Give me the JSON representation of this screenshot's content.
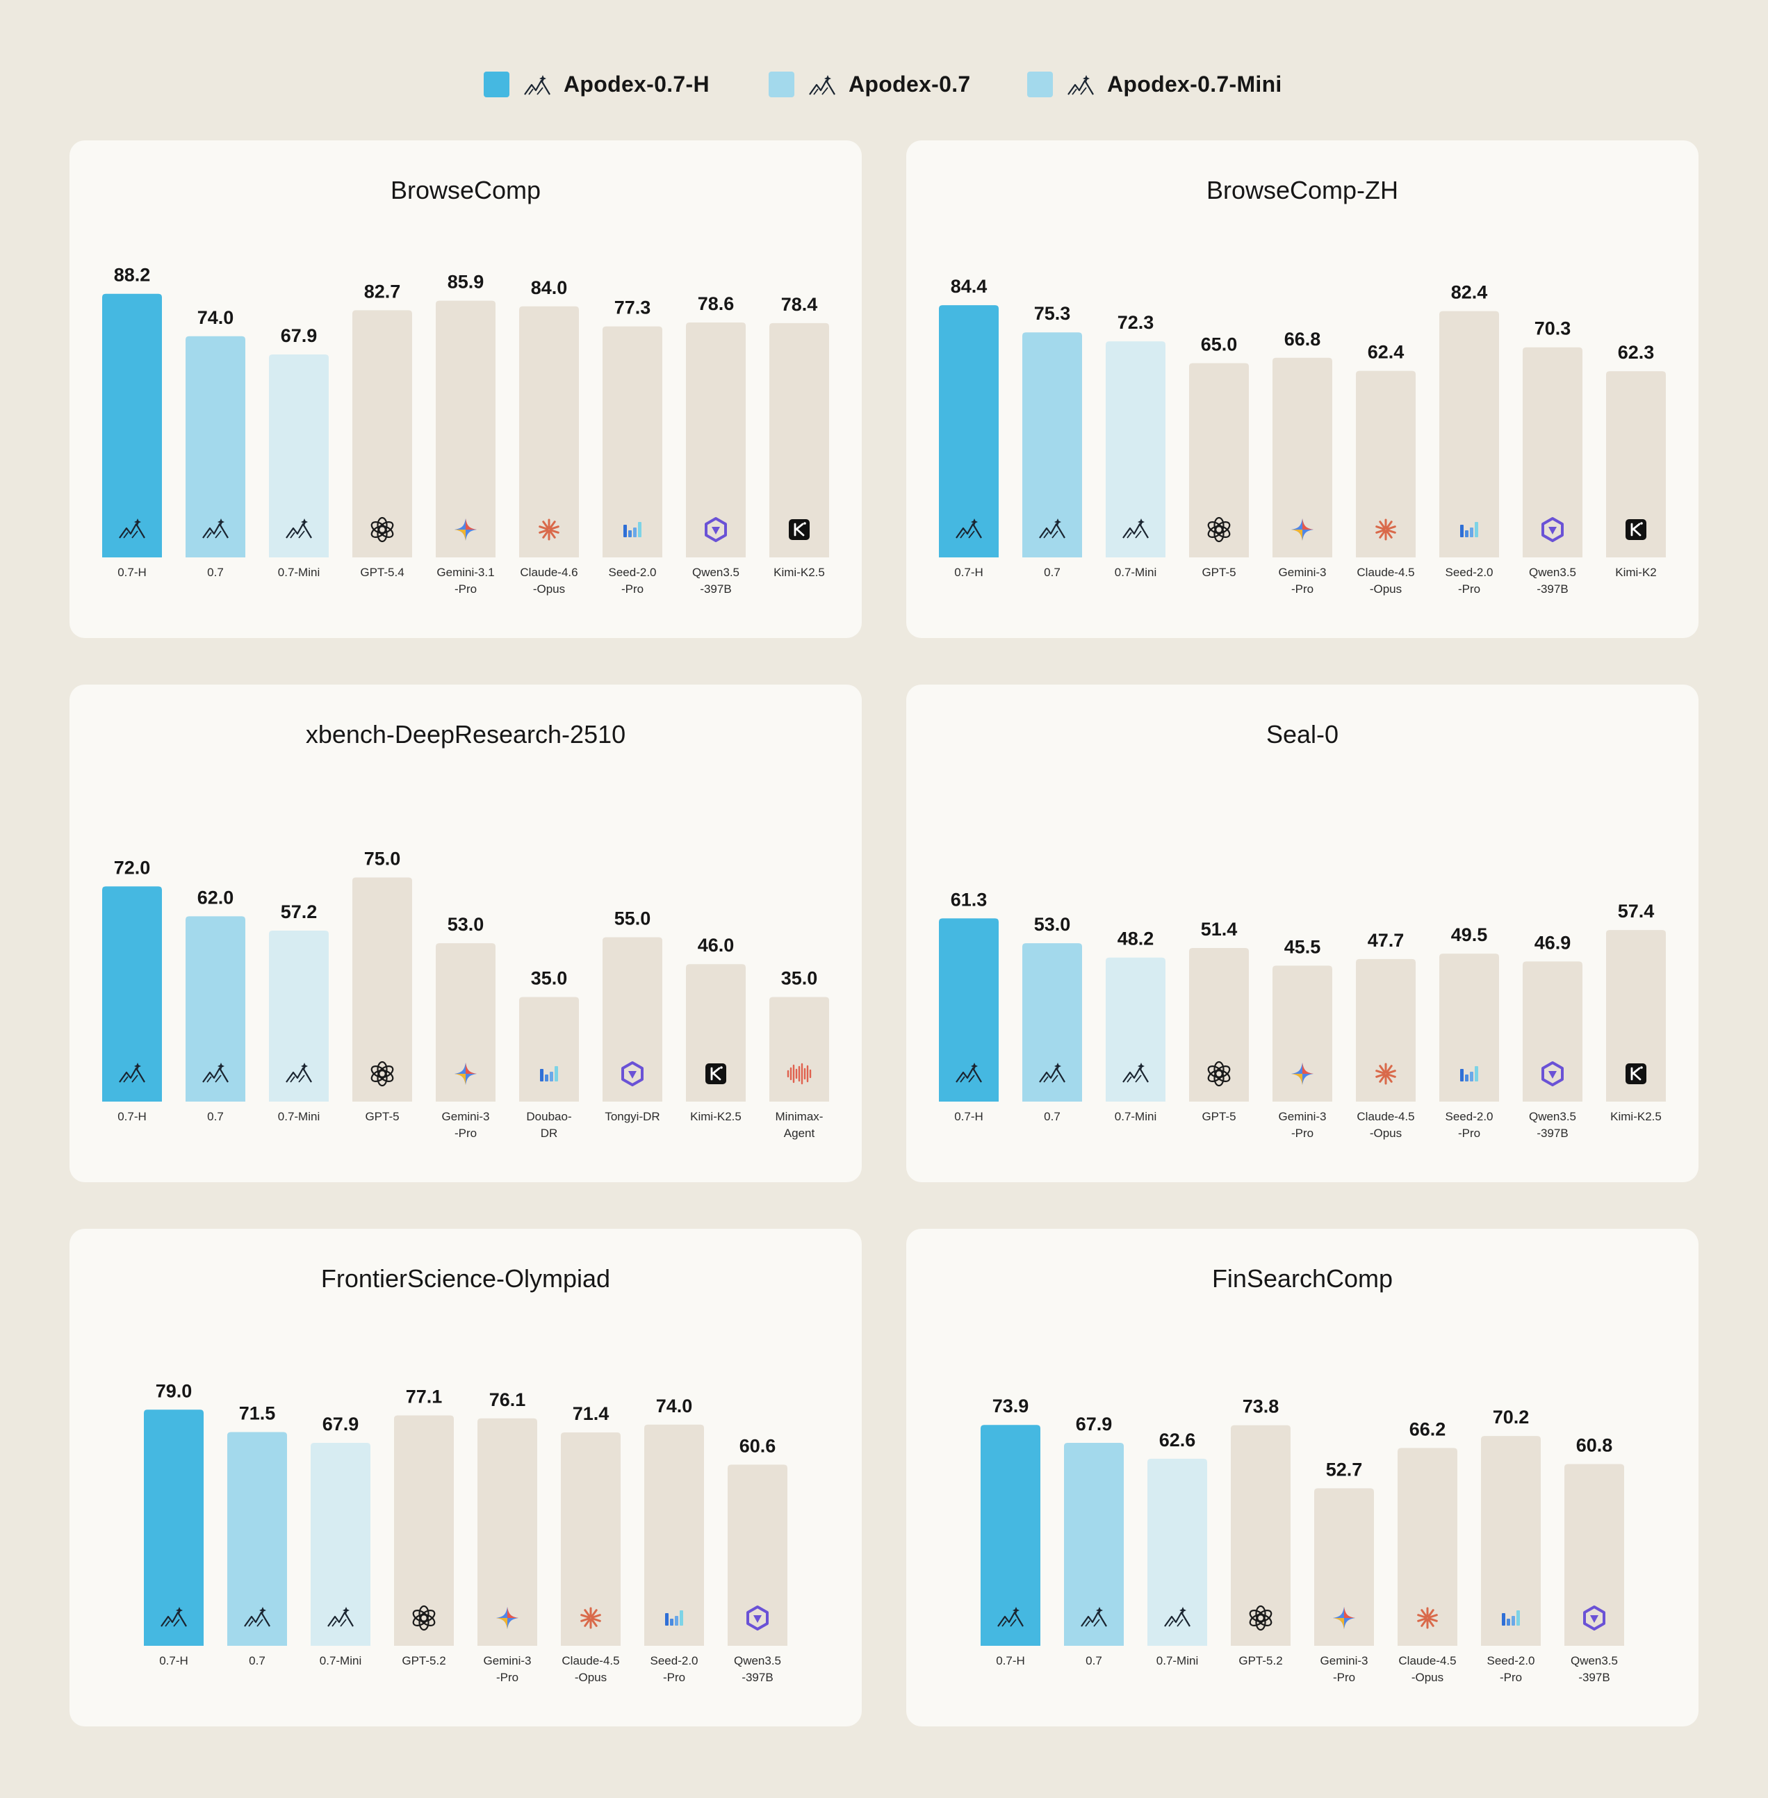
{
  "legend": [
    {
      "label": "Apodex-0.7-H",
      "color": "#45b8e1"
    },
    {
      "label": "Apodex-0.7",
      "color": "#a3d9ec"
    },
    {
      "label": "Apodex-0.7-Mini",
      "color": "#a3d9ec"
    }
  ],
  "colors": {
    "h": "#45b8e1",
    "base": "#a3d9ec",
    "mini": "#d7ecf2",
    "other": "#e8e1d6"
  },
  "chart_data": [
    {
      "type": "bar",
      "title": "BrowseComp",
      "categories": [
        [
          "0.7-H"
        ],
        [
          "0.7"
        ],
        [
          "0.7-Mini"
        ],
        [
          "GPT-5.4"
        ],
        [
          "Gemini-3.1",
          "-Pro"
        ],
        [
          "Claude-4.6",
          "-Opus"
        ],
        [
          "Seed-2.0",
          "-Pro"
        ],
        [
          "Qwen3.5",
          "-397B"
        ],
        [
          "Kimi-K2.5"
        ]
      ],
      "values": [
        88.2,
        74.0,
        67.9,
        82.7,
        85.9,
        84.0,
        77.3,
        78.6,
        78.4
      ],
      "labels": [
        "88.2",
        "74.0",
        "67.9",
        "82.7",
        "85.9",
        "84.0",
        "77.3",
        "78.6",
        "78.4"
      ],
      "icons": [
        "apodex-icon",
        "apodex-icon",
        "apodex-icon",
        "openai-icon",
        "gemini-icon",
        "claude-icon",
        "seed-icon",
        "qwen-icon",
        "kimi-icon"
      ],
      "series": [
        "h",
        "base",
        "mini",
        "other",
        "other",
        "other",
        "other",
        "other",
        "other"
      ]
    },
    {
      "type": "bar",
      "title": "BrowseComp-ZH",
      "categories": [
        [
          "0.7-H"
        ],
        [
          "0.7"
        ],
        [
          "0.7-Mini"
        ],
        [
          "GPT-5"
        ],
        [
          "Gemini-3",
          "-Pro"
        ],
        [
          "Claude-4.5",
          "-Opus"
        ],
        [
          "Seed-2.0",
          "-Pro"
        ],
        [
          "Qwen3.5",
          "-397B"
        ],
        [
          "Kimi-K2"
        ]
      ],
      "values": [
        84.4,
        75.3,
        72.3,
        65.0,
        66.8,
        62.4,
        82.4,
        70.3,
        62.3
      ],
      "labels": [
        "84.4",
        "75.3",
        "72.3",
        "65.0",
        "66.8",
        "62.4",
        "82.4",
        "70.3",
        "62.3"
      ],
      "icons": [
        "apodex-icon",
        "apodex-icon",
        "apodex-icon",
        "openai-icon",
        "gemini-icon",
        "claude-icon",
        "seed-icon",
        "qwen-icon",
        "kimi-icon"
      ],
      "series": [
        "h",
        "base",
        "mini",
        "other",
        "other",
        "other",
        "other",
        "other",
        "other"
      ]
    },
    {
      "type": "bar",
      "title": "xbench-DeepResearch-2510",
      "categories": [
        [
          "0.7-H"
        ],
        [
          "0.7"
        ],
        [
          "0.7-Mini"
        ],
        [
          "GPT-5"
        ],
        [
          "Gemini-3",
          "-Pro"
        ],
        [
          "Doubao-",
          "DR"
        ],
        [
          "Tongyi-DR"
        ],
        [
          "Kimi-K2.5"
        ],
        [
          "Minimax-",
          "Agent"
        ]
      ],
      "values": [
        72.0,
        62.0,
        57.2,
        75.0,
        53.0,
        35.0,
        55.0,
        46.0,
        35.0
      ],
      "labels": [
        "72.0",
        "62.0",
        "57.2",
        "75.0",
        "53.0",
        "35.0",
        "55.0",
        "46.0",
        "35.0"
      ],
      "icons": [
        "apodex-icon",
        "apodex-icon",
        "apodex-icon",
        "openai-icon",
        "gemini-icon",
        "seed-icon",
        "qwen-icon",
        "kimi-icon",
        "minimax-icon"
      ],
      "series": [
        "h",
        "base",
        "mini",
        "other",
        "other",
        "other",
        "other",
        "other",
        "other"
      ]
    },
    {
      "type": "bar",
      "title": "Seal-0",
      "categories": [
        [
          "0.7-H"
        ],
        [
          "0.7"
        ],
        [
          "0.7-Mini"
        ],
        [
          "GPT-5"
        ],
        [
          "Gemini-3",
          "-Pro"
        ],
        [
          "Claude-4.5",
          "-Opus"
        ],
        [
          "Seed-2.0",
          "-Pro"
        ],
        [
          "Qwen3.5",
          "-397B"
        ],
        [
          "Kimi-K2.5"
        ]
      ],
      "values": [
        61.3,
        53.0,
        48.2,
        51.4,
        45.5,
        47.7,
        49.5,
        46.9,
        57.4
      ],
      "labels": [
        "61.3",
        "53.0",
        "48.2",
        "51.4",
        "45.5",
        "47.7",
        "49.5",
        "46.9",
        "57.4"
      ],
      "icons": [
        "apodex-icon",
        "apodex-icon",
        "apodex-icon",
        "openai-icon",
        "gemini-icon",
        "claude-icon",
        "seed-icon",
        "qwen-icon",
        "kimi-icon"
      ],
      "series": [
        "h",
        "base",
        "mini",
        "other",
        "other",
        "other",
        "other",
        "other",
        "other"
      ]
    },
    {
      "type": "bar",
      "title": "FrontierScience-Olympiad",
      "categories": [
        [
          "0.7-H"
        ],
        [
          "0.7"
        ],
        [
          "0.7-Mini"
        ],
        [
          "GPT-5.2"
        ],
        [
          "Gemini-3",
          "-Pro"
        ],
        [
          "Claude-4.5",
          "-Opus"
        ],
        [
          "Seed-2.0",
          "-Pro"
        ],
        [
          "Qwen3.5",
          "-397B"
        ]
      ],
      "values": [
        79.0,
        71.5,
        67.9,
        77.1,
        76.1,
        71.4,
        74.0,
        60.6
      ],
      "labels": [
        "79.0",
        "71.5",
        "67.9",
        "77.1",
        "76.1",
        "71.4",
        "74.0",
        "60.6"
      ],
      "icons": [
        "apodex-icon",
        "apodex-icon",
        "apodex-icon",
        "openai-icon",
        "gemini-icon",
        "claude-icon",
        "seed-icon",
        "qwen-icon"
      ],
      "series": [
        "h",
        "base",
        "mini",
        "other",
        "other",
        "other",
        "other",
        "other"
      ]
    },
    {
      "type": "bar",
      "title": "FinSearchComp",
      "categories": [
        [
          "0.7-H"
        ],
        [
          "0.7"
        ],
        [
          "0.7-Mini"
        ],
        [
          "GPT-5.2"
        ],
        [
          "Gemini-3",
          "-Pro"
        ],
        [
          "Claude-4.5",
          "-Opus"
        ],
        [
          "Seed-2.0",
          "-Pro"
        ],
        [
          "Qwen3.5",
          "-397B"
        ]
      ],
      "values": [
        73.9,
        67.9,
        62.6,
        73.8,
        52.7,
        66.2,
        70.2,
        60.8
      ],
      "labels": [
        "73.9",
        "67.9",
        "62.6",
        "73.8",
        "52.7",
        "66.2",
        "70.2",
        "60.8"
      ],
      "icons": [
        "apodex-icon",
        "apodex-icon",
        "apodex-icon",
        "openai-icon",
        "gemini-icon",
        "claude-icon",
        "seed-icon",
        "qwen-icon"
      ],
      "series": [
        "h",
        "base",
        "mini",
        "other",
        "other",
        "other",
        "other",
        "other"
      ]
    }
  ]
}
